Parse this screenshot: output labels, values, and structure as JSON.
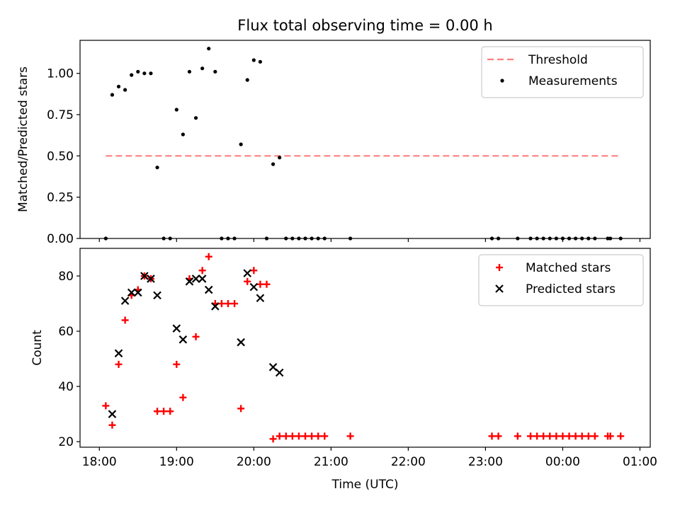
{
  "chart_data": [
    {
      "type": "scatter",
      "title": "Flux total observing time = 0.00 h",
      "xlabel": "",
      "ylabel": "Matched/Predicted stars",
      "xlim": [
        "17:45",
        "01:08"
      ],
      "ylim": [
        0.0,
        1.2
      ],
      "yticks": [
        "0.00",
        "0.25",
        "0.50",
        "0.75",
        "1.00"
      ],
      "grid": false,
      "legend": "top-right",
      "threshold": {
        "name": "Threshold",
        "value": 0.5,
        "x_start": "18:05",
        "x_end": "00:45",
        "color": "#ff7f7f",
        "style": "dashed"
      },
      "series": [
        {
          "name": "Measurements",
          "color": "#000000",
          "marker": "dot",
          "points": [
            [
              "18:05",
              0.0
            ],
            [
              "18:10",
              0.87
            ],
            [
              "18:15",
              0.92
            ],
            [
              "18:20",
              0.9
            ],
            [
              "18:25",
              0.99
            ],
            [
              "18:30",
              1.01
            ],
            [
              "18:35",
              1.0
            ],
            [
              "18:40",
              1.0
            ],
            [
              "18:45",
              0.43
            ],
            [
              "18:50",
              0.0
            ],
            [
              "18:55",
              0.0
            ],
            [
              "19:00",
              0.78
            ],
            [
              "19:05",
              0.63
            ],
            [
              "19:10",
              1.01
            ],
            [
              "19:15",
              0.73
            ],
            [
              "19:20",
              1.03
            ],
            [
              "19:25",
              1.15
            ],
            [
              "19:30",
              1.01
            ],
            [
              "19:35",
              0.0
            ],
            [
              "19:40",
              0.0
            ],
            [
              "19:45",
              0.0
            ],
            [
              "19:50",
              0.57
            ],
            [
              "19:55",
              0.96
            ],
            [
              "20:00",
              1.08
            ],
            [
              "20:05",
              1.07
            ],
            [
              "20:10",
              0.0
            ],
            [
              "20:15",
              0.45
            ],
            [
              "20:20",
              0.49
            ],
            [
              "20:25",
              0.0
            ],
            [
              "20:30",
              0.0
            ],
            [
              "20:35",
              0.0
            ],
            [
              "20:40",
              0.0
            ],
            [
              "20:45",
              0.0
            ],
            [
              "20:50",
              0.0
            ],
            [
              "20:55",
              0.0
            ],
            [
              "21:15",
              0.0
            ],
            [
              "23:05",
              0.0
            ],
            [
              "23:10",
              0.0
            ],
            [
              "23:25",
              0.0
            ],
            [
              "23:35",
              0.0
            ],
            [
              "23:40",
              0.0
            ],
            [
              "23:45",
              0.0
            ],
            [
              "23:50",
              0.0
            ],
            [
              "23:55",
              0.0
            ],
            [
              "00:00",
              0.0
            ],
            [
              "00:05",
              0.0
            ],
            [
              "00:10",
              0.0
            ],
            [
              "00:15",
              0.0
            ],
            [
              "00:20",
              0.0
            ],
            [
              "00:25",
              0.0
            ],
            [
              "00:35",
              0.0
            ],
            [
              "00:37",
              0.0
            ],
            [
              "00:45",
              0.0
            ]
          ]
        }
      ]
    },
    {
      "type": "scatter",
      "title": "",
      "xlabel": "Time (UTC)",
      "ylabel": "Count",
      "xlim": [
        "17:45",
        "01:08"
      ],
      "ylim": [
        18,
        90
      ],
      "yticks": [
        "20",
        "40",
        "60",
        "80"
      ],
      "xticks": [
        "18:00",
        "19:00",
        "20:00",
        "21:00",
        "22:00",
        "23:00",
        "00:00",
        "01:00"
      ],
      "grid": false,
      "legend": "top-right",
      "series": [
        {
          "name": "Matched stars",
          "color": "#ff0000",
          "marker": "plus",
          "points": [
            [
              "18:05",
              33
            ],
            [
              "18:10",
              26
            ],
            [
              "18:15",
              48
            ],
            [
              "18:20",
              64
            ],
            [
              "18:25",
              73
            ],
            [
              "18:30",
              75
            ],
            [
              "18:35",
              80
            ],
            [
              "18:40",
              79
            ],
            [
              "18:45",
              31
            ],
            [
              "18:50",
              31
            ],
            [
              "18:55",
              31
            ],
            [
              "19:00",
              48
            ],
            [
              "19:05",
              36
            ],
            [
              "19:10",
              79
            ],
            [
              "19:15",
              58
            ],
            [
              "19:20",
              82
            ],
            [
              "19:25",
              87
            ],
            [
              "19:30",
              70
            ],
            [
              "19:35",
              70
            ],
            [
              "19:40",
              70
            ],
            [
              "19:45",
              70
            ],
            [
              "19:50",
              32
            ],
            [
              "19:55",
              78
            ],
            [
              "20:00",
              82
            ],
            [
              "20:05",
              77
            ],
            [
              "20:10",
              77
            ],
            [
              "20:15",
              21
            ],
            [
              "20:20",
              22
            ],
            [
              "20:25",
              22
            ],
            [
              "20:30",
              22
            ],
            [
              "20:35",
              22
            ],
            [
              "20:40",
              22
            ],
            [
              "20:45",
              22
            ],
            [
              "20:50",
              22
            ],
            [
              "20:55",
              22
            ],
            [
              "21:15",
              22
            ],
            [
              "23:05",
              22
            ],
            [
              "23:10",
              22
            ],
            [
              "23:25",
              22
            ],
            [
              "23:35",
              22
            ],
            [
              "23:40",
              22
            ],
            [
              "23:45",
              22
            ],
            [
              "23:50",
              22
            ],
            [
              "23:55",
              22
            ],
            [
              "00:00",
              22
            ],
            [
              "00:05",
              22
            ],
            [
              "00:10",
              22
            ],
            [
              "00:15",
              22
            ],
            [
              "00:20",
              22
            ],
            [
              "00:25",
              22
            ],
            [
              "00:35",
              22
            ],
            [
              "00:37",
              22
            ],
            [
              "00:45",
              22
            ]
          ]
        },
        {
          "name": "Predicted stars",
          "color": "#000000",
          "marker": "x",
          "points": [
            [
              "18:10",
              30
            ],
            [
              "18:15",
              52
            ],
            [
              "18:20",
              71
            ],
            [
              "18:25",
              74
            ],
            [
              "18:30",
              74
            ],
            [
              "18:35",
              80
            ],
            [
              "18:40",
              79
            ],
            [
              "18:45",
              73
            ],
            [
              "19:00",
              61
            ],
            [
              "19:05",
              57
            ],
            [
              "19:10",
              78
            ],
            [
              "19:15",
              79
            ],
            [
              "19:20",
              79
            ],
            [
              "19:25",
              75
            ],
            [
              "19:30",
              69
            ],
            [
              "19:50",
              56
            ],
            [
              "19:55",
              81
            ],
            [
              "20:00",
              76
            ],
            [
              "20:05",
              72
            ],
            [
              "20:15",
              47
            ],
            [
              "20:20",
              45
            ]
          ]
        }
      ]
    }
  ]
}
